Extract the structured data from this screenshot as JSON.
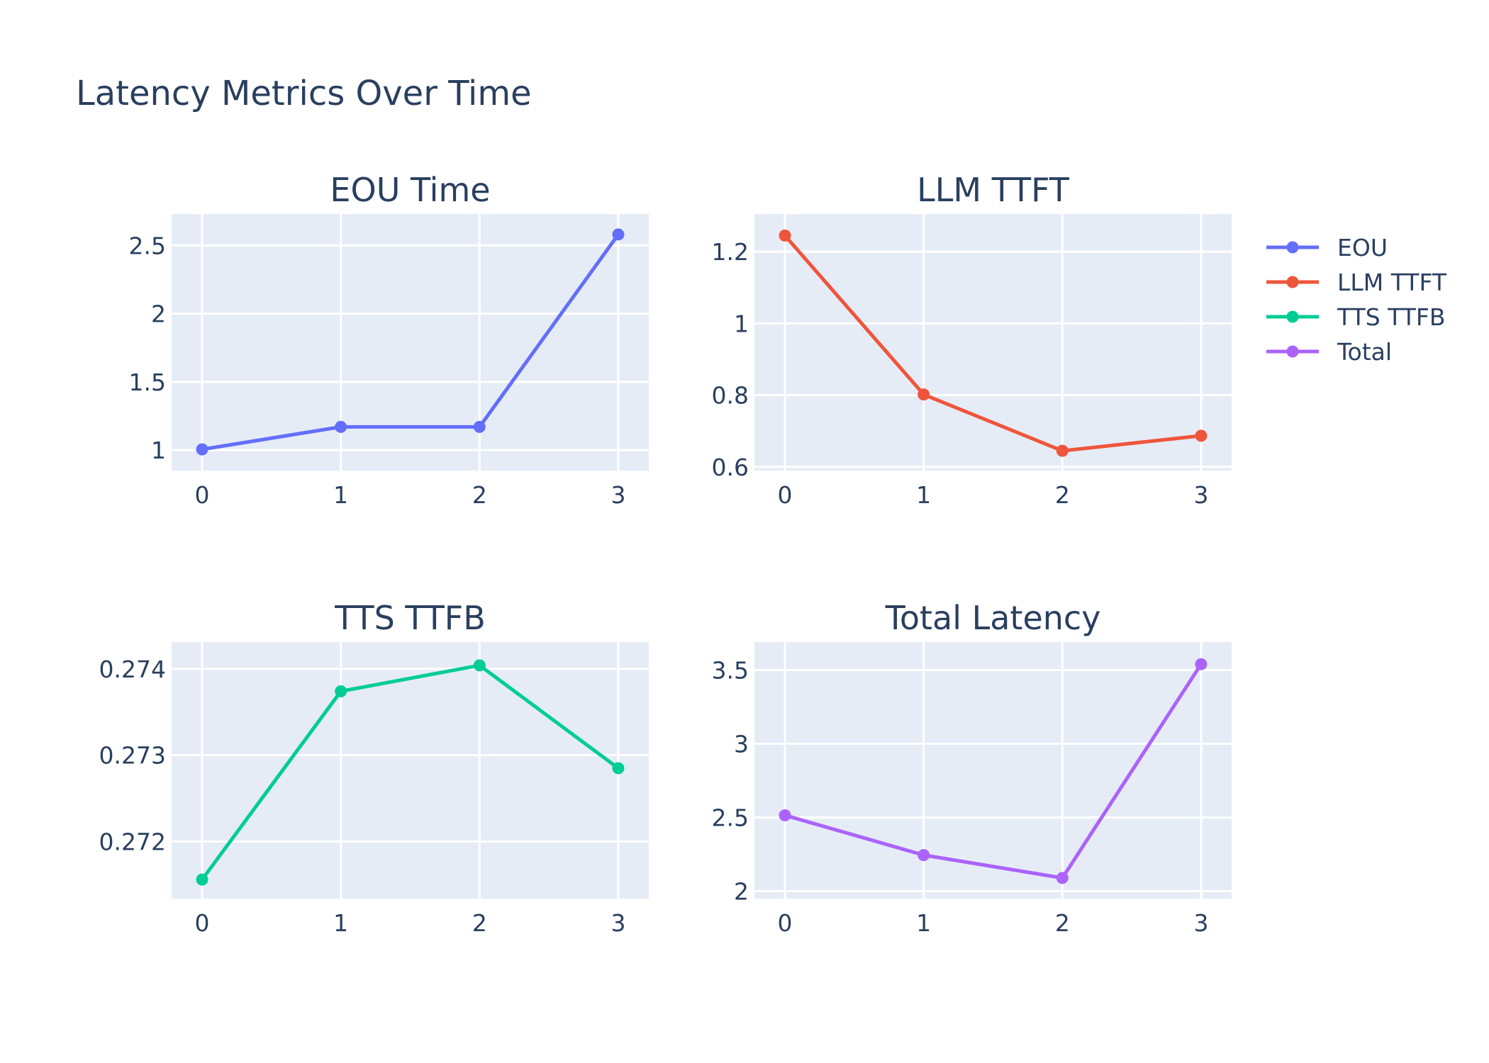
{
  "title": "Latency Metrics Over Time",
  "chart_data": [
    {
      "type": "line",
      "title": "EOU Time",
      "series_name": "EOU",
      "color": "#636efa",
      "x": [
        0,
        1,
        2,
        3
      ],
      "y": [
        1.005,
        1.17,
        1.17,
        2.58
      ],
      "xlim": [
        -0.22,
        3.22
      ],
      "ylim": [
        0.85,
        2.73
      ],
      "xticks": [
        0,
        1,
        2,
        3
      ],
      "yticks": [
        1,
        1.5,
        2,
        2.5
      ],
      "ytick_labels": [
        "1",
        "1.5",
        "2",
        "2.5"
      ]
    },
    {
      "type": "line",
      "title": "LLM TTFT",
      "series_name": "LLM TTFT",
      "color": "#ef553b",
      "x": [
        0,
        1,
        2,
        3
      ],
      "y": [
        1.245,
        0.802,
        0.645,
        0.687
      ],
      "xlim": [
        -0.22,
        3.22
      ],
      "ylim": [
        0.59,
        1.305
      ],
      "xticks": [
        0,
        1,
        2,
        3
      ],
      "yticks": [
        0.6,
        0.8,
        1,
        1.2
      ],
      "ytick_labels": [
        "0.6",
        "0.8",
        "1",
        "1.2"
      ]
    },
    {
      "type": "line",
      "title": "TTS TTFB",
      "series_name": "TTS TTFB",
      "color": "#00cc96",
      "x": [
        0,
        1,
        2,
        3
      ],
      "y": [
        0.27156,
        0.27374,
        0.27404,
        0.27285
      ],
      "xlim": [
        -0.22,
        3.22
      ],
      "ylim": [
        0.27134,
        0.27431
      ],
      "xticks": [
        0,
        1,
        2,
        3
      ],
      "yticks": [
        0.272,
        0.273,
        0.274
      ],
      "ytick_labels": [
        "0.272",
        "0.273",
        "0.274"
      ]
    },
    {
      "type": "line",
      "title": "Total Latency",
      "series_name": "Total",
      "color": "#ab63fa",
      "x": [
        0,
        1,
        2,
        3
      ],
      "y": [
        2.515,
        2.245,
        2.09,
        3.54
      ],
      "xlim": [
        -0.22,
        3.22
      ],
      "ylim": [
        1.95,
        3.69
      ],
      "xticks": [
        0,
        1,
        2,
        3
      ],
      "yticks": [
        2,
        2.5,
        3,
        3.5
      ],
      "ytick_labels": [
        "2",
        "2.5",
        "3",
        "3.5"
      ]
    }
  ],
  "legend": {
    "placement": "right",
    "items": [
      {
        "label": "EOU",
        "color": "#636efa"
      },
      {
        "label": "LLM TTFT",
        "color": "#ef553b"
      },
      {
        "label": "TTS TTFB",
        "color": "#00cc96"
      },
      {
        "label": "Total",
        "color": "#ab63fa"
      }
    ]
  }
}
